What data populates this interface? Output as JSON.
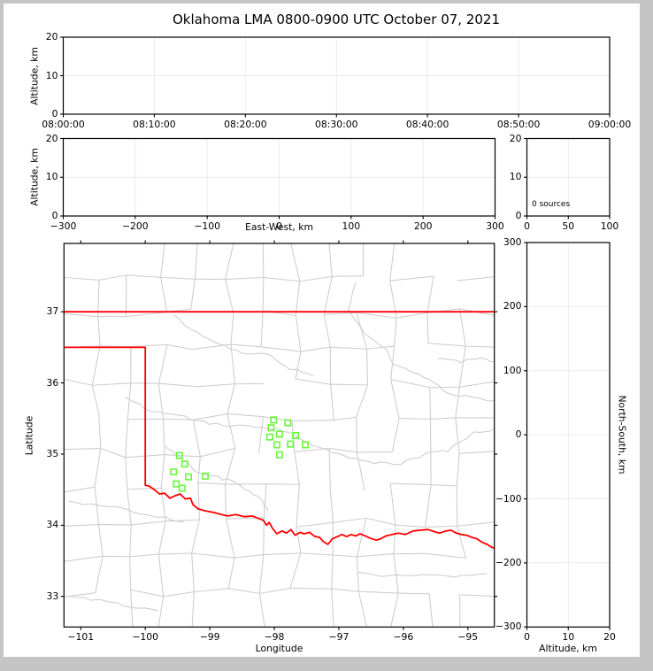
{
  "window": {
    "frame_color": "#c5c5c5",
    "canvas_color": "#ffffff"
  },
  "title": "Oklahoma LMA 0800-0900 UTC October 07, 2021",
  "colors": {
    "axis": "#000000",
    "grid": "#ebebeb",
    "county_line": "#cecece",
    "state_border": "#ff0000",
    "station_marker": "#69f73c"
  },
  "chart_data": [
    {
      "id": "time-altitude-panel",
      "type": "scatter",
      "xlabel": "",
      "ylabel": "Altitude, km",
      "xlim": [
        0,
        3600
      ],
      "ylim": [
        0,
        20
      ],
      "xticks": [
        0,
        600,
        1200,
        1800,
        2400,
        3000,
        3600
      ],
      "xtick_labels": [
        "08:00:00",
        "08:10:00",
        "08:20:00",
        "08:30:00",
        "08:40:00",
        "08:50:00",
        "09:00:00"
      ],
      "yticks": [
        0,
        10,
        20
      ],
      "ytick_labels": [
        "0",
        "10",
        "20"
      ],
      "grid": true,
      "points": []
    },
    {
      "id": "east-west-altitude-panel",
      "type": "scatter",
      "xlabel": "East-West, km",
      "ylabel": "Altitude, km",
      "xlim": [
        -300,
        300
      ],
      "ylim": [
        0,
        20
      ],
      "xticks": [
        -300,
        -200,
        -100,
        0,
        100,
        200,
        300
      ],
      "xtick_labels": [
        "−300",
        "−200",
        "−100",
        "0",
        "100",
        "200",
        "300"
      ],
      "yticks": [
        0,
        10,
        20
      ],
      "ytick_labels": [
        "0",
        "10",
        "20"
      ],
      "grid": true,
      "points": []
    },
    {
      "id": "altitude-histogram-panel",
      "type": "histogram",
      "xlabel": "",
      "ylabel": "",
      "annotation": "0 sources",
      "xlim": [
        0,
        100
      ],
      "ylim": [
        0,
        20
      ],
      "xticks": [
        0,
        50,
        100
      ],
      "xtick_labels": [
        "0",
        "50",
        "100"
      ],
      "yticks": [
        0,
        10,
        20
      ],
      "ytick_labels": [
        "0",
        "10",
        "20"
      ],
      "grid": true,
      "points": []
    },
    {
      "id": "plan-view-map-panel",
      "type": "scatter",
      "xlabel": "Longitude",
      "ylabel": "Latitude",
      "xlim": [
        -101.26,
        -94.59
      ],
      "ylim": [
        32.57,
        37.96
      ],
      "xticks": [
        -101,
        -100,
        -99,
        -98,
        -97,
        -96,
        -95
      ],
      "xtick_labels": [
        "−101",
        "−100",
        "−99",
        "−98",
        "−97",
        "−96",
        "−95"
      ],
      "yticks": [
        33,
        34,
        35,
        36,
        37
      ],
      "ytick_labels": [
        "33",
        "34",
        "35",
        "36",
        "37"
      ],
      "grid": false,
      "stations": [
        [
          -99.47,
          34.98
        ],
        [
          -99.39,
          34.86
        ],
        [
          -99.56,
          34.75
        ],
        [
          -99.33,
          34.68
        ],
        [
          -99.07,
          34.69
        ],
        [
          -99.52,
          34.58
        ],
        [
          -99.43,
          34.52
        ],
        [
          -98.01,
          35.48
        ],
        [
          -97.79,
          35.44
        ],
        [
          -98.05,
          35.37
        ],
        [
          -97.92,
          35.28
        ],
        [
          -98.07,
          35.24
        ],
        [
          -97.67,
          35.26
        ],
        [
          -97.96,
          35.13
        ],
        [
          -97.75,
          35.14
        ],
        [
          -97.52,
          35.13
        ],
        [
          -97.92,
          34.99
        ]
      ],
      "state_boundary": {
        "north_border_lat": 37.0,
        "panhandle_south_lat": 36.5,
        "panhandle_east_lon": -100.0,
        "west_border_bottom_lat": 34.56,
        "red_river": [
          [
            -100.0,
            34.56
          ],
          [
            -99.94,
            34.55
          ],
          [
            -99.86,
            34.5
          ],
          [
            -99.78,
            34.44
          ],
          [
            -99.7,
            34.45
          ],
          [
            -99.62,
            34.38
          ],
          [
            -99.55,
            34.41
          ],
          [
            -99.46,
            34.44
          ],
          [
            -99.38,
            34.37
          ],
          [
            -99.3,
            34.38
          ],
          [
            -99.26,
            34.29
          ],
          [
            -99.18,
            34.23
          ],
          [
            -99.06,
            34.2
          ],
          [
            -98.94,
            34.18
          ],
          [
            -98.86,
            34.16
          ],
          [
            -98.72,
            34.13
          ],
          [
            -98.6,
            34.15
          ],
          [
            -98.46,
            34.12
          ],
          [
            -98.34,
            34.13
          ],
          [
            -98.26,
            34.1
          ],
          [
            -98.17,
            34.07
          ],
          [
            -98.12,
            34.0
          ],
          [
            -98.08,
            34.04
          ],
          [
            -98.03,
            33.96
          ],
          [
            -97.96,
            33.88
          ],
          [
            -97.88,
            33.92
          ],
          [
            -97.81,
            33.89
          ],
          [
            -97.74,
            33.94
          ],
          [
            -97.68,
            33.86
          ],
          [
            -97.6,
            33.9
          ],
          [
            -97.54,
            33.88
          ],
          [
            -97.45,
            33.9
          ],
          [
            -97.37,
            33.84
          ],
          [
            -97.3,
            33.83
          ],
          [
            -97.24,
            33.77
          ],
          [
            -97.17,
            33.73
          ],
          [
            -97.1,
            33.81
          ],
          [
            -97.02,
            33.84
          ],
          [
            -96.95,
            33.87
          ],
          [
            -96.88,
            33.84
          ],
          [
            -96.81,
            33.87
          ],
          [
            -96.74,
            33.85
          ],
          [
            -96.67,
            33.88
          ],
          [
            -96.59,
            33.85
          ],
          [
            -96.52,
            33.82
          ],
          [
            -96.42,
            33.79
          ],
          [
            -96.35,
            33.81
          ],
          [
            -96.27,
            33.85
          ],
          [
            -96.17,
            33.87
          ],
          [
            -96.08,
            33.89
          ],
          [
            -95.97,
            33.87
          ],
          [
            -95.85,
            33.92
          ],
          [
            -95.74,
            33.93
          ],
          [
            -95.62,
            33.94
          ],
          [
            -95.52,
            33.91
          ],
          [
            -95.44,
            33.89
          ],
          [
            -95.34,
            33.92
          ],
          [
            -95.26,
            33.93
          ],
          [
            -95.18,
            33.89
          ],
          [
            -95.1,
            33.87
          ],
          [
            -95.02,
            33.86
          ],
          [
            -94.94,
            33.83
          ],
          [
            -94.86,
            33.81
          ],
          [
            -94.78,
            33.76
          ],
          [
            -94.7,
            33.73
          ],
          [
            -94.63,
            33.69
          ],
          [
            -94.59,
            33.68
          ]
        ]
      }
    },
    {
      "id": "north-south-altitude-panel",
      "type": "scatter",
      "xlabel": "Altitude, km",
      "ylabel": "North-South, km",
      "xlim": [
        0,
        20
      ],
      "ylim": [
        -300,
        300
      ],
      "xticks": [
        0,
        10,
        20
      ],
      "xtick_labels": [
        "0",
        "10",
        "20"
      ],
      "yticks": [
        -300,
        -200,
        -100,
        0,
        100,
        200,
        300
      ],
      "ytick_labels": [
        "−300",
        "−200",
        "−100",
        "0",
        "100",
        "200",
        "300"
      ],
      "grid": true,
      "points": []
    }
  ]
}
